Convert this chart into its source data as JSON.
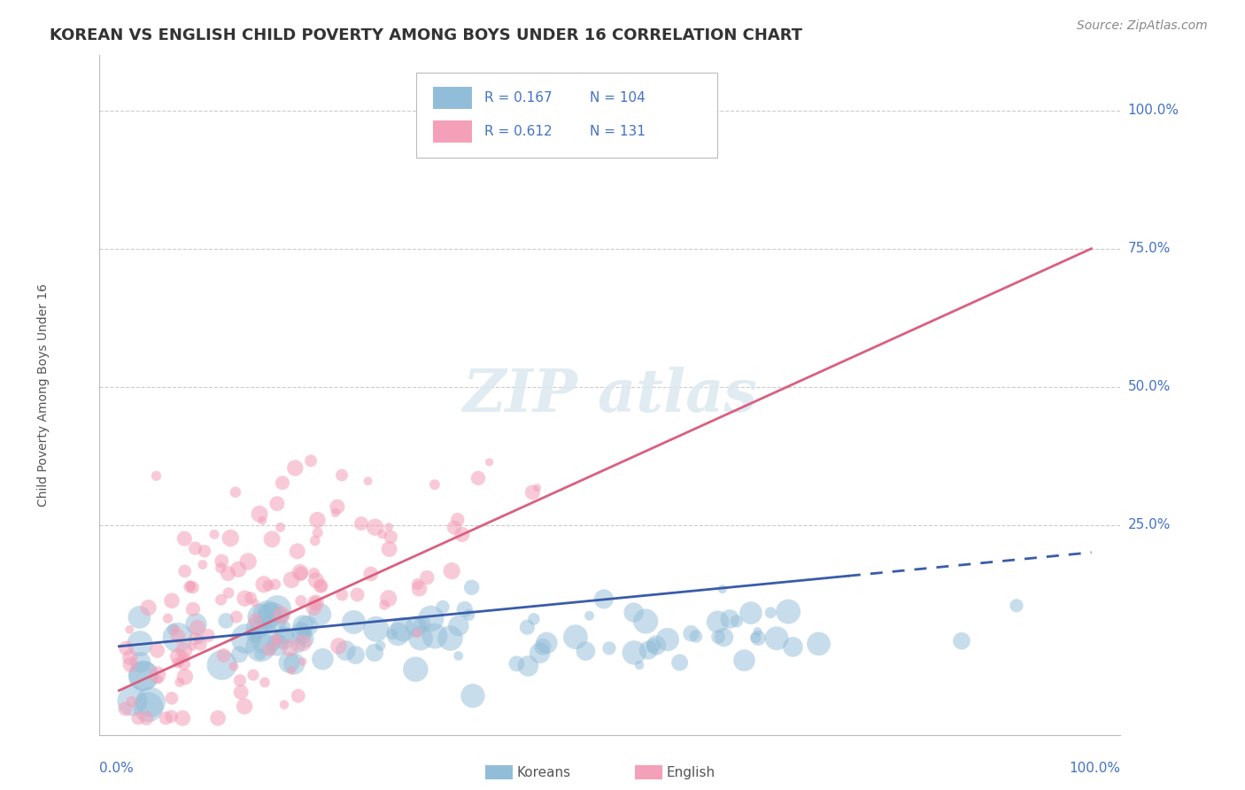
{
  "title": "KOREAN VS ENGLISH CHILD POVERTY AMONG BOYS UNDER 16 CORRELATION CHART",
  "source": "Source: ZipAtlas.com",
  "ylabel": "Child Poverty Among Boys Under 16",
  "koreans_R": 0.167,
  "koreans_N": 104,
  "english_R": 0.612,
  "english_N": 131,
  "korean_color": "#92bdd8",
  "english_color": "#f4a0b8",
  "korean_line_color": "#3a5ca8",
  "english_line_color": "#d96080",
  "background_color": "#ffffff",
  "axis_label_color": "#4472c4",
  "gridline_color": "#cccccc",
  "watermark_color": "#dce8f0",
  "title_fontsize": 13,
  "axis_fontsize": 11,
  "source_fontsize": 10
}
